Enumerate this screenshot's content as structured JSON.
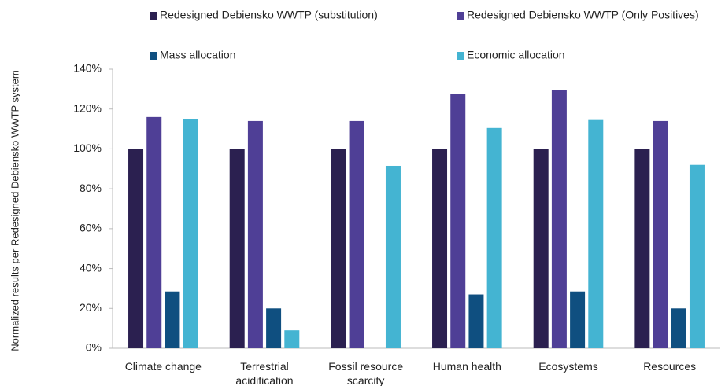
{
  "chart_data": {
    "type": "bar",
    "y_label": "Normalized results per Redesigned Debiensko WWTP system",
    "categories": [
      "Climate change",
      "Terrestrial acidification",
      "Fossil resource scarcity",
      "Human health",
      "Ecosystems",
      "Resources"
    ],
    "series": [
      {
        "name": "Redesigned Debiensko WWTP (substitution)",
        "color": "#2b2050",
        "values": [
          100,
          100,
          100,
          100,
          100,
          100
        ]
      },
      {
        "name": "Redesigned Debiensko WWTP (Only Positives)",
        "color": "#4f3f96",
        "values": [
          116,
          114,
          114,
          127.5,
          129.5,
          114
        ]
      },
      {
        "name": "Mass allocation",
        "color": "#0f4f80",
        "values": [
          28.5,
          20,
          0,
          27,
          28.5,
          20
        ]
      },
      {
        "name": "Economic allocation",
        "color": "#44b4d2",
        "values": [
          115,
          9,
          91.5,
          110.5,
          114.5,
          92
        ]
      }
    ],
    "ylim": [
      0,
      140
    ],
    "yticks": [
      {
        "value": 0,
        "label": "0%"
      },
      {
        "value": 20,
        "label": "20%"
      },
      {
        "value": 40,
        "label": "40%"
      },
      {
        "value": 60,
        "label": "60%"
      },
      {
        "value": 80,
        "label": "80%"
      },
      {
        "value": 100,
        "label": "100%"
      },
      {
        "value": 120,
        "label": "120%"
      },
      {
        "value": 140,
        "label": "140%"
      }
    ],
    "grid": false
  }
}
